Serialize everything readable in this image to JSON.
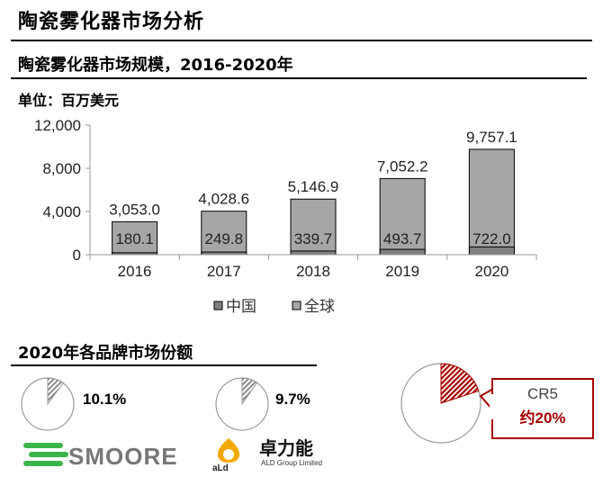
{
  "page": {
    "title": "陶瓷雾化器市场分析"
  },
  "market_section": {
    "title": "陶瓷雾化器市场规模，2016-2020年",
    "unit": "单位：百万美元"
  },
  "brand_section": {
    "title": "2020年各品牌市场份额"
  },
  "chart_data": {
    "type": "bar",
    "categories": [
      "2016",
      "2017",
      "2018",
      "2019",
      "2020"
    ],
    "series": [
      {
        "name": "中国",
        "values": [
          180.1,
          249.8,
          339.7,
          493.7,
          722.0
        ],
        "labels": [
          "180.1",
          "249.8",
          "339.7",
          "493.7",
          "722.0"
        ],
        "color": "#808080"
      },
      {
        "name": "全球",
        "values": [
          3053.0,
          4028.6,
          5146.9,
          7052.2,
          9757.1
        ],
        "labels": [
          "3,053.0",
          "4,028.6",
          "5,146.9",
          "7,052.2",
          "9,757.1"
        ],
        "color": "#a6a6a6"
      }
    ],
    "yticks": [
      "0",
      "4,000",
      "8,000",
      "12,000"
    ],
    "ylim": [
      0,
      12000
    ],
    "grid": false,
    "legend": "bottom"
  },
  "brands": [
    {
      "name": "SMOORE",
      "share": 10.1,
      "share_label": "10.1%",
      "logo_color": "#3ab54a"
    },
    {
      "name": "卓力能",
      "sub": "ALD Group Limited",
      "share": 9.7,
      "share_label": "9.7%",
      "logo_color": "#f2a900"
    }
  ],
  "cr5": {
    "label": "CR5",
    "value_label": "约20%",
    "share": 20,
    "color": "#a50000"
  }
}
